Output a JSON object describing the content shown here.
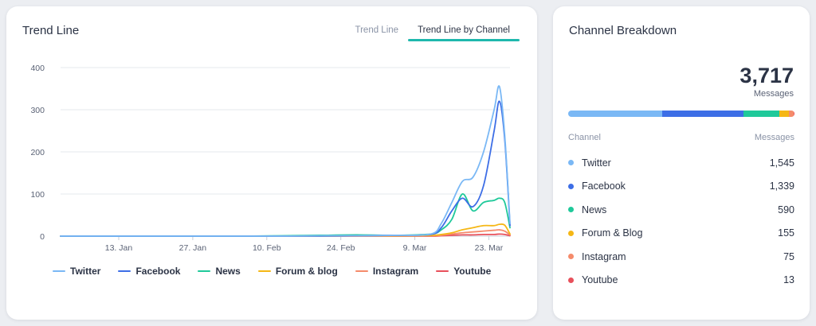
{
  "trend": {
    "title": "Trend Line",
    "tabs": [
      {
        "label": "Trend Line",
        "active": false
      },
      {
        "label": "Trend Line by Channel",
        "active": true
      }
    ]
  },
  "chart_data": {
    "type": "line",
    "ylim": [
      0,
      400
    ],
    "yticks": [
      "0",
      "100",
      "200",
      "300",
      "400"
    ],
    "xticks": [
      "13. Jan",
      "27. Jan",
      "10. Feb",
      "24. Feb",
      "9. Mar",
      "23. Mar"
    ],
    "x": [
      0,
      7,
      14,
      21,
      28,
      35,
      42,
      49,
      56,
      63,
      70,
      72,
      74,
      76,
      78,
      80,
      82,
      83,
      84,
      85
    ],
    "series": [
      {
        "name": "Twitter",
        "color": "#7ab8f5",
        "values": [
          0,
          0,
          0,
          0,
          0,
          0,
          0,
          1,
          1,
          2,
          5,
          30,
          80,
          130,
          140,
          200,
          300,
          355,
          240,
          30
        ]
      },
      {
        "name": "Facebook",
        "color": "#3d6ee6",
        "values": [
          0,
          0,
          0,
          0,
          0,
          0,
          0,
          0,
          1,
          2,
          4,
          20,
          60,
          90,
          70,
          120,
          250,
          320,
          230,
          25
        ]
      },
      {
        "name": "News",
        "color": "#1fc99a",
        "values": [
          0,
          0,
          0,
          0,
          0,
          0,
          1,
          2,
          3,
          2,
          5,
          15,
          40,
          100,
          60,
          80,
          85,
          90,
          80,
          20
        ]
      },
      {
        "name": "Forum & blog",
        "color": "#f5b715",
        "values": [
          0,
          0,
          0,
          0,
          0,
          0,
          0,
          0,
          1,
          1,
          2,
          4,
          8,
          15,
          20,
          25,
          25,
          28,
          26,
          5
        ]
      },
      {
        "name": "Instagram",
        "color": "#f58b6b",
        "values": [
          0,
          0,
          0,
          0,
          0,
          0,
          0,
          0,
          0,
          0,
          1,
          2,
          5,
          8,
          10,
          12,
          14,
          15,
          12,
          3
        ]
      },
      {
        "name": "Youtube",
        "color": "#e8505b",
        "values": [
          0,
          0,
          0,
          0,
          0,
          0,
          0,
          0,
          0,
          0,
          0,
          1,
          2,
          3,
          3,
          4,
          4,
          5,
          4,
          1
        ]
      }
    ]
  },
  "breakdown": {
    "title": "Channel Breakdown",
    "total": "3,717",
    "total_label": "Messages",
    "col_channel": "Channel",
    "col_messages": "Messages",
    "channels": [
      {
        "name": "Twitter",
        "value": "1,545",
        "count": 1545,
        "color": "#7ab8f5"
      },
      {
        "name": "Facebook",
        "value": "1,339",
        "count": 1339,
        "color": "#3d6ee6"
      },
      {
        "name": "News",
        "value": "590",
        "count": 590,
        "color": "#1fc99a"
      },
      {
        "name": "Forum & Blog",
        "value": "155",
        "count": 155,
        "color": "#f5b715"
      },
      {
        "name": "Instagram",
        "value": "75",
        "count": 75,
        "color": "#f58b6b"
      },
      {
        "name": "Youtube",
        "value": "13",
        "count": 13,
        "color": "#e8505b"
      }
    ]
  }
}
